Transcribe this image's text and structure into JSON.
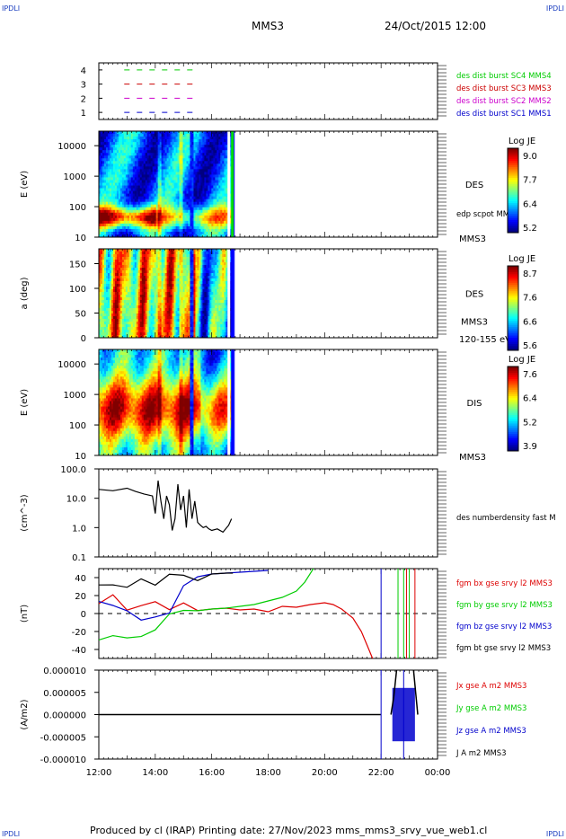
{
  "header": {
    "corner_tl": "IPDLI",
    "corner_tr": "IPDLI",
    "corner_bl": "IPDLI",
    "corner_br": "IPDLI",
    "title": "MMS3",
    "datetime": "24/Oct/2015 12:00"
  },
  "footer": {
    "text": "Produced by cl (IRAP)   Printing date: 27/Nov/2023   mms_mms3_srvy_vue_web1.cl"
  },
  "colors": {
    "mms1": "#0000cc",
    "mms2": "#cc00cc",
    "mms3": "#cc0000",
    "mms4": "#00cc00",
    "bx": "#dd0000",
    "by": "#00cc00",
    "bz": "#0000cc",
    "bt": "#000000"
  },
  "chart_data": [
    {
      "type": "line",
      "panel": "burst-availability",
      "ylim": [
        0.5,
        4.5
      ],
      "yticks": [
        "1",
        "2",
        "3",
        "4"
      ],
      "legend": [
        {
          "name": "des dist burst SC1 MMS1",
          "color": "#0000cc",
          "level": 1
        },
        {
          "name": "des dist burst SC2 MMS2",
          "color": "#cc00cc",
          "level": 2
        },
        {
          "name": "des dist burst SC3 MMS3",
          "color": "#cc0000",
          "level": 3
        },
        {
          "name": "des dist burst SC4 MMS4",
          "color": "#00cc00",
          "level": 4
        }
      ],
      "segments_hours": [
        12.9,
        15.4
      ]
    },
    {
      "type": "heatmap",
      "panel": "des-energy",
      "ylabel": "E (eV)",
      "scale": "log",
      "ylim": [
        10,
        30000
      ],
      "yticks": [
        "10",
        "100",
        "1000",
        "10000"
      ],
      "side_label": "DES",
      "side_label2": "edp scpot MMS3",
      "side_label3": "MMS3",
      "cbar_title": "Log JE",
      "cbar_ticks": [
        "9.0",
        "7.7",
        "6.4",
        "5.2"
      ],
      "data_end_hours": 16.75
    },
    {
      "type": "heatmap",
      "panel": "des-pitch-angle",
      "ylabel": "a (deg)",
      "ylim": [
        0,
        180
      ],
      "yticks": [
        "0",
        "50",
        "100",
        "150"
      ],
      "side_label": "DES",
      "side_label2": "MMS3",
      "side_label3": "120-155 eV",
      "cbar_title": "Log JE",
      "cbar_ticks": [
        "8.7",
        "7.6",
        "6.6",
        "5.6"
      ],
      "data_end_hours": 16.75
    },
    {
      "type": "heatmap",
      "panel": "dis-energy",
      "ylabel": "E (eV)",
      "scale": "log",
      "ylim": [
        10,
        30000
      ],
      "yticks": [
        "10",
        "100",
        "1000",
        "10000"
      ],
      "side_label": "DIS",
      "side_label3": "MMS3",
      "cbar_title": "Log JE",
      "cbar_ticks": [
        "7.6",
        "6.4",
        "5.2",
        "3.9"
      ],
      "data_end_hours": 16.75
    },
    {
      "type": "line",
      "panel": "density",
      "ylabel": "(cm^-3)",
      "scale": "log",
      "ylim": [
        0.1,
        100
      ],
      "yticks": [
        "0.1",
        "1.0",
        "10.0",
        "100.0"
      ],
      "series": [
        {
          "name": "des numberdensity fast M",
          "color": "#000000",
          "x": [
            12.0,
            12.5,
            13.0,
            13.3,
            13.6,
            13.9,
            14.0,
            14.1,
            14.2,
            14.3,
            14.4,
            14.5,
            14.6,
            14.7,
            14.8,
            14.9,
            15.0,
            15.1,
            15.2,
            15.3,
            15.4,
            15.5,
            15.6,
            15.7,
            15.8,
            15.9,
            16.0,
            16.2,
            16.4,
            16.6,
            16.7
          ],
          "y": [
            20,
            18,
            22,
            17,
            14,
            12,
            3,
            40,
            8,
            2,
            12,
            6,
            0.8,
            2,
            30,
            4,
            12,
            1,
            20,
            2,
            8,
            1.5,
            1.2,
            1.0,
            1.1,
            0.9,
            0.8,
            0.9,
            0.7,
            1.2,
            2
          ]
        }
      ]
    },
    {
      "type": "line",
      "panel": "magnetic-field",
      "ylabel": "(nT)",
      "ylim": [
        -50,
        50
      ],
      "yticks": [
        "-40",
        "-20",
        "0",
        "20",
        "40"
      ],
      "series": [
        {
          "name": "fgm bx gse srvy l2 MMS3",
          "color": "#dd0000",
          "x": [
            12.0,
            12.5,
            13.0,
            13.5,
            14.0,
            14.5,
            15.0,
            15.5,
            16.0,
            16.5,
            17.0,
            17.5,
            18.0,
            18.5,
            19.0,
            19.5,
            20.0,
            20.3,
            20.6,
            21.0,
            21.3,
            21.5,
            21.7
          ],
          "y": [
            18,
            15,
            10,
            8,
            15,
            5,
            10,
            8,
            5,
            6,
            4,
            5,
            2,
            8,
            7,
            10,
            12,
            10,
            5,
            -5,
            -20,
            -35,
            -50
          ]
        },
        {
          "name": "fgm by gse srvy l2 MMS3",
          "color": "#00cc00",
          "x": [
            12.0,
            12.5,
            13.0,
            13.5,
            14.0,
            14.5,
            15.0,
            15.5,
            16.0,
            16.5,
            17.0,
            17.5,
            18.0,
            18.5,
            19.0,
            19.3,
            19.6
          ],
          "y": [
            -25,
            -28,
            -28,
            -25,
            -15,
            -5,
            0,
            3,
            5,
            6,
            8,
            10,
            14,
            18,
            25,
            35,
            50
          ]
        },
        {
          "name": "fgm bz gse srvy l2 MMS3",
          "color": "#0000cc",
          "x": [
            12.0,
            12.5,
            13.0,
            13.5,
            14.0,
            14.5,
            15.0,
            15.5,
            16.0,
            16.5,
            17.0,
            17.5,
            18.0
          ],
          "y": [
            20,
            15,
            5,
            -5,
            -10,
            0,
            30,
            40,
            44,
            45,
            46,
            47,
            48
          ]
        },
        {
          "name": "fgm bt gse srvy l2 MMS3",
          "color": "#000000",
          "x": [
            12.0,
            12.5,
            13.0,
            13.5,
            14.0,
            14.5,
            15.0,
            15.5,
            16.0,
            16.5,
            16.75
          ],
          "y": [
            35,
            33,
            32,
            33,
            30,
            38,
            40,
            42,
            44,
            45,
            45
          ]
        }
      ]
    },
    {
      "type": "line",
      "panel": "current-density",
      "ylabel": "(A/m2)",
      "ylim": [
        -1e-05,
        1e-05
      ],
      "yticks": [
        "-0.000010",
        "-0.000005",
        "0.000000",
        "0.000005",
        "0.000010"
      ],
      "xticks": [
        "12:00",
        "14:00",
        "16:00",
        "18:00",
        "20:00",
        "22:00",
        "00:00"
      ],
      "xlim_hours": [
        12,
        24
      ],
      "series": [
        {
          "name": "Jx gse A m2 MMS3",
          "color": "#dd0000"
        },
        {
          "name": "Jy gse A m2 MMS3",
          "color": "#00cc00"
        },
        {
          "name": "Jz gse A m2 MMS3",
          "color": "#0000cc"
        },
        {
          "name": "J A m2 MMS3",
          "color": "#000000"
        }
      ]
    }
  ]
}
